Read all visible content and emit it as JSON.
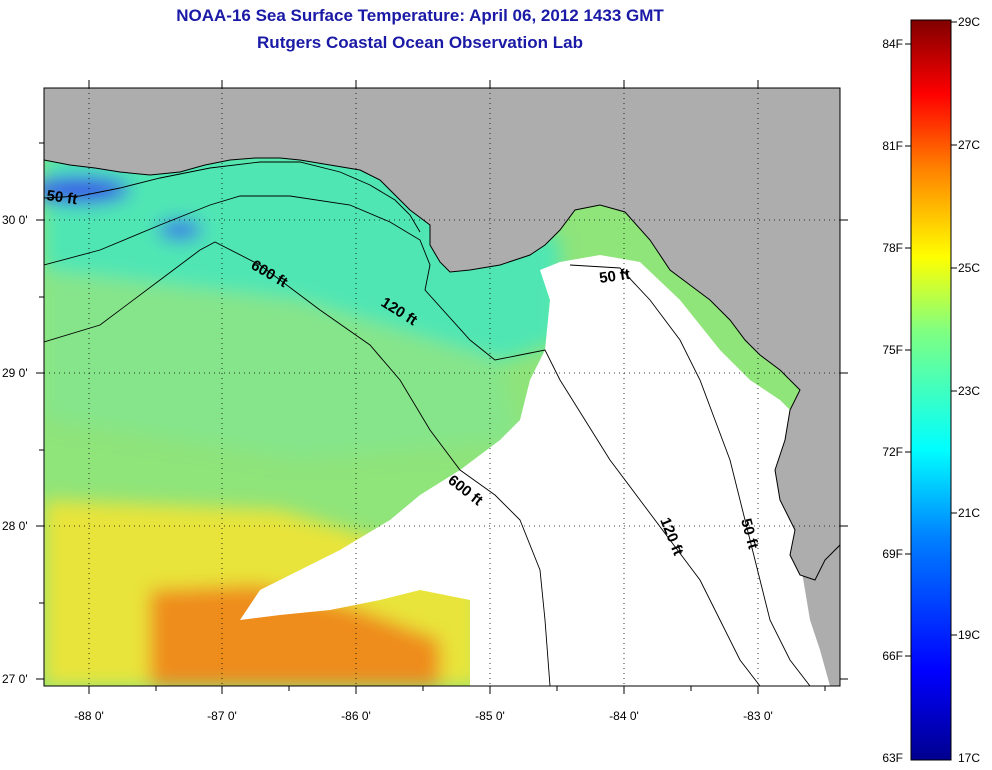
{
  "title": {
    "line1": "NOAA-16 Sea Surface Temperature:  April 06, 2012 1433 GMT",
    "line2": "Rutgers Coastal Ocean Observation Lab"
  },
  "map": {
    "lon_ticks": [
      "-88 0'",
      "-87 0'",
      "-86 0'",
      "-85 0'",
      "-84 0'",
      "-83 0'"
    ],
    "lat_ticks": [
      "30 0'",
      "29 0'",
      "28 0'",
      "27 0'"
    ],
    "contours": [
      "50 ft",
      "600 ft",
      "120 ft",
      "600 ft",
      "50 ft",
      "120 ft",
      "50 ft"
    ],
    "colors": {
      "land": "#adadad",
      "no_data": "#ffffff",
      "water_shelf": "#4fe6b4",
      "water_offshore": "#a6e46a",
      "water_warm": "#e8e43a",
      "water_hot": "#ee8c1c"
    }
  },
  "colorbar": {
    "fahrenheit": [
      "84F",
      "81F",
      "78F",
      "75F",
      "72F",
      "69F",
      "66F",
      "63F"
    ],
    "celsius": [
      "29C",
      "27C",
      "25C",
      "23C",
      "21C",
      "19C",
      "17C"
    ]
  }
}
